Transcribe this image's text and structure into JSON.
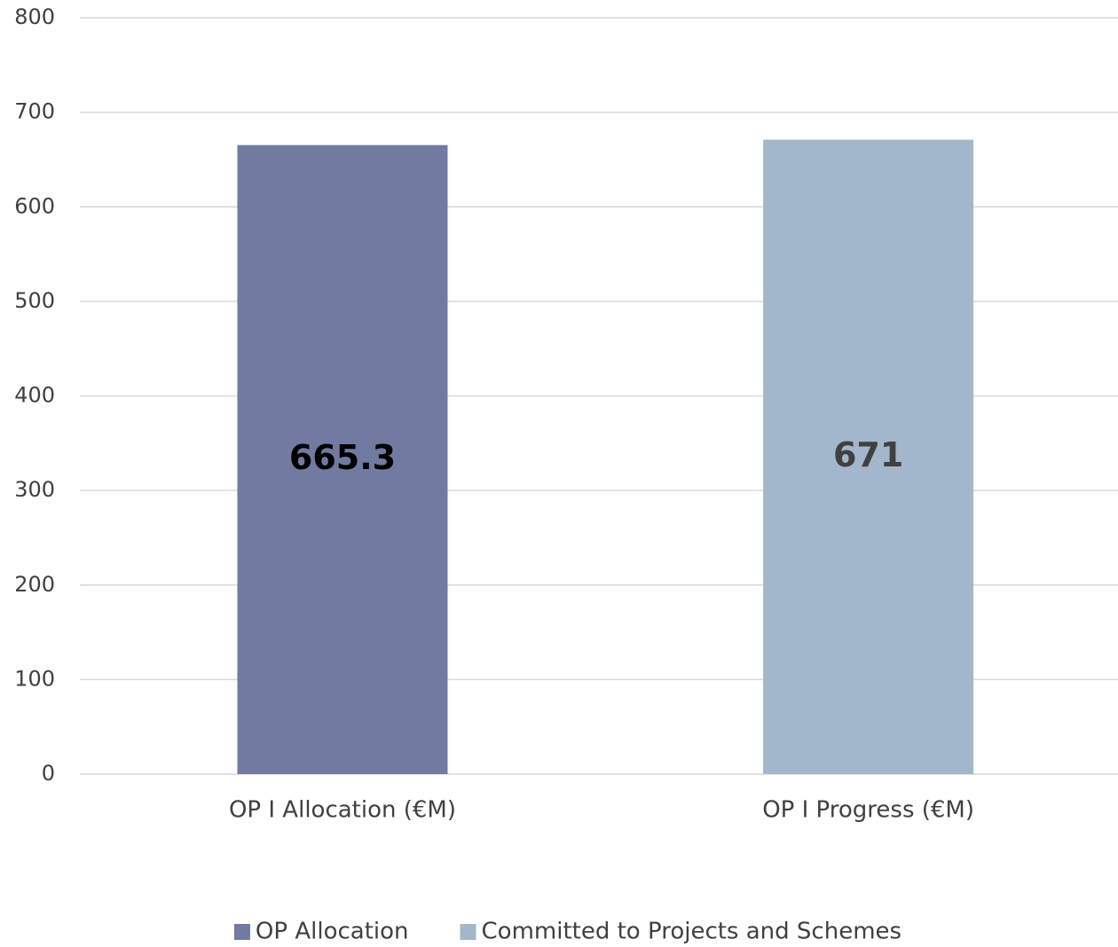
{
  "chart_data": {
    "type": "bar",
    "categories": [
      "OP I Allocation (€M)",
      "OP I Progress (€M)"
    ],
    "series": [
      {
        "name": "OP Allocation",
        "color": "#717aa0",
        "label_color": "#000000",
        "values": [
          665.3,
          null
        ]
      },
      {
        "name": "Committed to Projects and Schemes",
        "color": "#a2b7cc",
        "label_color": "#404040",
        "values": [
          null,
          671
        ]
      }
    ],
    "ylim": [
      0,
      800
    ],
    "yticks": [
      0,
      100,
      200,
      300,
      400,
      500,
      600,
      700,
      800
    ],
    "grid": true,
    "legend": "bottom"
  }
}
